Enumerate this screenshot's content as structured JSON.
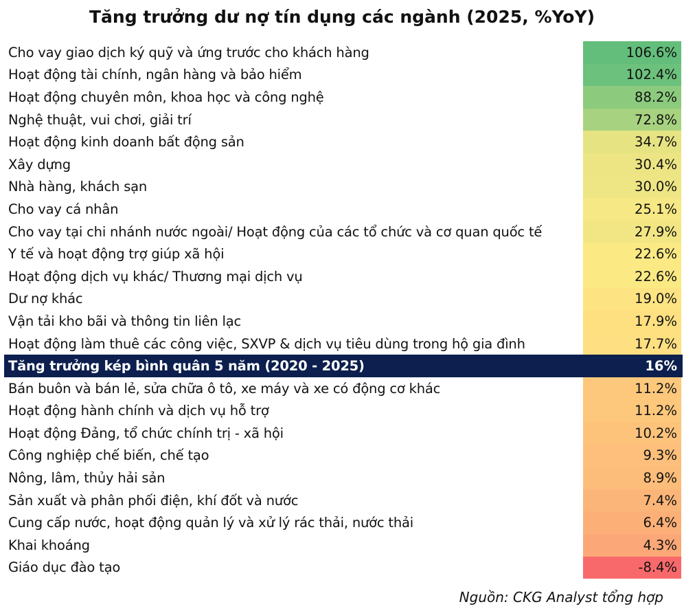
{
  "chart_data": {
    "type": "table",
    "title": "Tăng trưởng dư nợ tín dụng các ngành (2025, %YoY)",
    "rows": [
      {
        "label": "Cho vay giao dịch ký quỹ và ứng trước cho khách hàng",
        "value": "106.6%",
        "num": 106.6,
        "color": "#63be7b"
      },
      {
        "label": "Hoạt động tài chính, ngân hàng và bảo hiểm",
        "value": "102.4%",
        "num": 102.4,
        "color": "#6cc17c"
      },
      {
        "label": "Hoạt động chuyên môn, khoa học và công nghệ",
        "value": "88.2%",
        "num": 88.2,
        "color": "#8ccb7e"
      },
      {
        "label": "Nghệ thuật, vui chơi, giải trí",
        "value": "72.8%",
        "num": 72.8,
        "color": "#a7d27f"
      },
      {
        "label": "Hoạt động kinh doanh bất động sản",
        "value": "34.7%",
        "num": 34.7,
        "color": "#e6e383"
      },
      {
        "label": "Xây dựng",
        "value": "30.4%",
        "num": 30.4,
        "color": "#ede584"
      },
      {
        "label": "Nhà hàng, khách sạn",
        "value": "30.0%",
        "num": 30.0,
        "color": "#eee584"
      },
      {
        "label": "Cho vay cá nhân",
        "value": "25.1%",
        "num": 25.1,
        "color": "#f6e884"
      },
      {
        "label": "Cho vay tại chi nhánh nước ngoài/ Hoạt động của các tổ chức và cơ quan quốc tế",
        "value": "27.9%",
        "num": 27.9,
        "color": "#f2e684"
      },
      {
        "label": "Y tế và hoạt động trợ giúp xã hội",
        "value": "22.6%",
        "num": 22.6,
        "color": "#fbe983"
      },
      {
        "label": "Hoạt động dịch vụ khác/ Thương mại dịch vụ",
        "value": "22.6%",
        "num": 22.6,
        "color": "#fbe983"
      },
      {
        "label": "Dư nợ khác",
        "value": "19.0%",
        "num": 19.0,
        "color": "#fee382"
      },
      {
        "label": "Vận tải kho bãi và thông tin liên lạc",
        "value": "17.9%",
        "num": 17.9,
        "color": "#fee081"
      },
      {
        "label": "Hoạt động làm thuê các công việc, SXVP & dịch vụ tiêu dùng trong hộ gia đình",
        "value": "17.7%",
        "num": 17.7,
        "color": "#fedf81"
      },
      {
        "label": "Tăng trưởng kép bình quân 5 năm (2020 - 2025)",
        "value": "16%",
        "num": 16,
        "color": "#0c1f4e",
        "highlight": true
      },
      {
        "label": "Bán buôn và bán lẻ, sửa chữa ô tô, xe máy và xe có động cơ khác",
        "value": "11.2%",
        "num": 11.2,
        "color": "#fdc87c"
      },
      {
        "label": "Hoạt động hành chính và dịch vụ hỗ trợ",
        "value": "11.2%",
        "num": 11.2,
        "color": "#fdc87c"
      },
      {
        "label": "Hoạt động Đảng, tổ chức chính trị - xã hội",
        "value": "10.2%",
        "num": 10.2,
        "color": "#fdc37b"
      },
      {
        "label": "Công nghiệp chế biến, chế tạo",
        "value": "9.3%",
        "num": 9.3,
        "color": "#fdbf7b"
      },
      {
        "label": "Nông, lâm, thủy hải sản",
        "value": "8.9%",
        "num": 8.9,
        "color": "#fdbd7a"
      },
      {
        "label": "Sản xuất và phân phối điện, khí đốt và nước",
        "value": "7.4%",
        "num": 7.4,
        "color": "#fcb579"
      },
      {
        "label": "Cung cấp nước, hoạt động quản lý và xử lý rác thải, nước thải",
        "value": "6.4%",
        "num": 6.4,
        "color": "#fcb078"
      },
      {
        "label": "Khai khoáng",
        "value": "4.3%",
        "num": 4.3,
        "color": "#fba777"
      },
      {
        "label": "Giáo dục đào tạo",
        "value": "-8.4%",
        "num": -8.4,
        "color": "#f8696b"
      }
    ]
  },
  "source": "Nguồn: CKG Analyst tổng hợp"
}
